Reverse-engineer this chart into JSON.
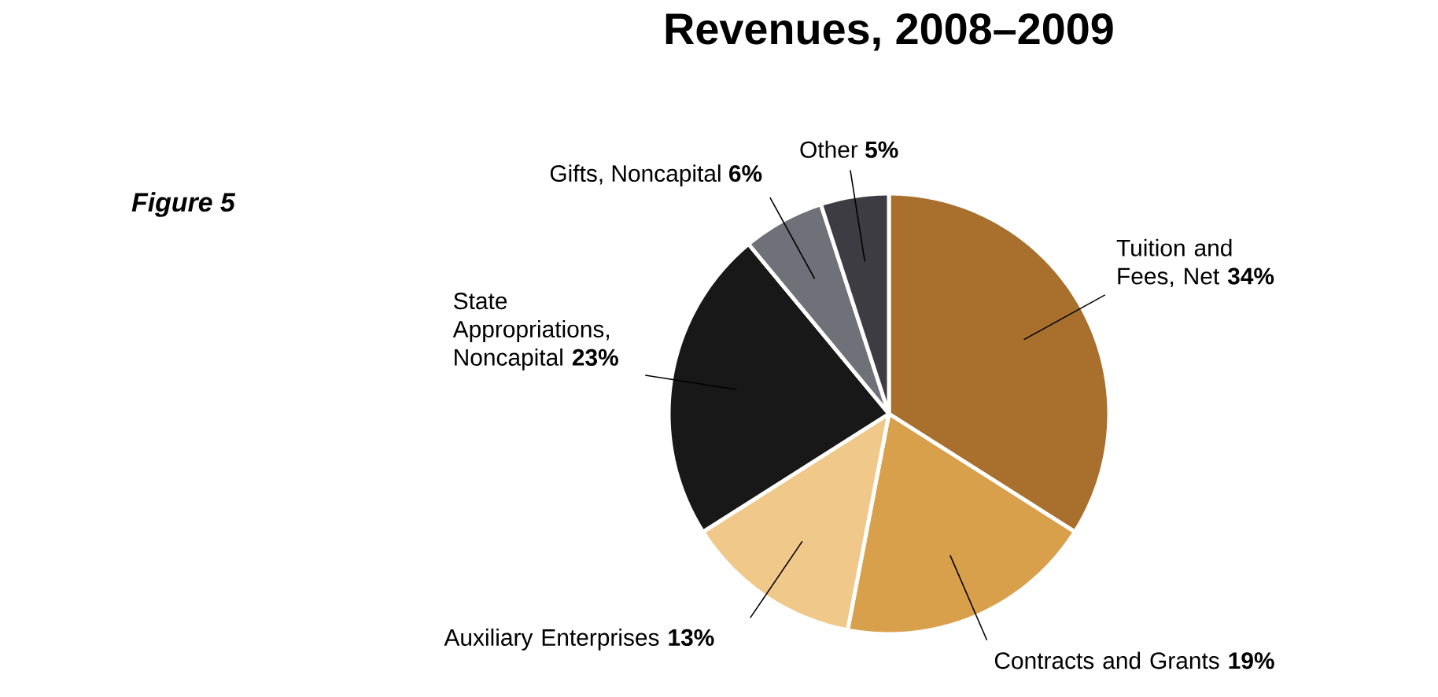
{
  "chart_data": {
    "type": "pie",
    "title": "Revenues, 2008–2009",
    "categories": [
      "Tuition and Fees, Net",
      "Contracts and Grants",
      "Auxiliary Enterprises",
      "State Appropriations, Noncapital",
      "Gifts, Noncapital",
      "Other"
    ],
    "values": [
      34,
      19,
      13,
      23,
      6,
      5
    ],
    "value_labels": [
      "34%",
      "19%",
      "13%",
      "23%",
      "6%",
      "5%"
    ],
    "colors": [
      "#a8702c",
      "#d9a04c",
      "#f0c88a",
      "#181818",
      "#707078",
      "#3c3c42"
    ],
    "annotations": [
      "Figure 5"
    ]
  }
}
